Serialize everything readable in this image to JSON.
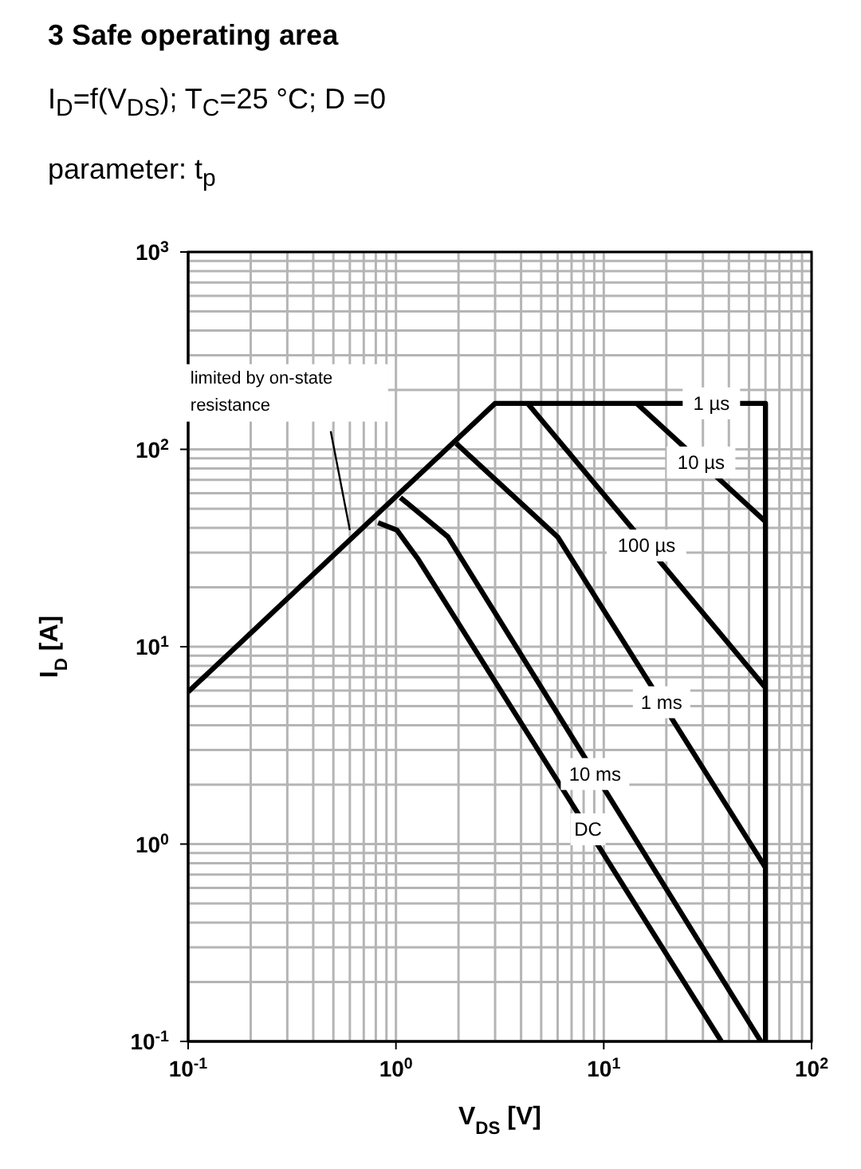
{
  "chart_data": {
    "type": "line",
    "title": "3 Safe operating area",
    "subtitle": "I$_{D}$=f(V$_{DS}$); T$_{C}$=25 °C; D =0",
    "annotations": [
      "parameter: t$_{p}$",
      {
        "text": "limited by on-state resistance",
        "x": 0.6,
        "y": 39
      }
    ],
    "xlabel": "V$_{DS}$ [V]",
    "ylabel": "I$_{D}$ [A]",
    "log": "xy",
    "grid": true,
    "marker": "none",
    "line_style": "solid",
    "xlim": [
      0.1,
      100
    ],
    "ylim": [
      0.1,
      1000
    ],
    "xticks": [
      {
        "value": 0.1,
        "label": "10$^{-1}$"
      },
      {
        "value": 0.2,
        "label": null
      },
      {
        "value": 0.3,
        "label": null
      },
      {
        "value": 0.4,
        "label": null
      },
      {
        "value": 0.5,
        "label": null
      },
      {
        "value": 0.6,
        "label": null
      },
      {
        "value": 0.7,
        "label": null
      },
      {
        "value": 0.8,
        "label": null
      },
      {
        "value": 0.9,
        "label": null
      },
      {
        "value": 1,
        "label": "10$^{0}$"
      },
      {
        "value": 2,
        "label": null
      },
      {
        "value": 3,
        "label": null
      },
      {
        "value": 4,
        "label": null
      },
      {
        "value": 5,
        "label": null
      },
      {
        "value": 6,
        "label": null
      },
      {
        "value": 7,
        "label": null
      },
      {
        "value": 8,
        "label": null
      },
      {
        "value": 9,
        "label": null
      },
      {
        "value": 10,
        "label": "10$^{1}$"
      },
      {
        "value": 20,
        "label": null
      },
      {
        "value": 30,
        "label": null
      },
      {
        "value": 40,
        "label": null
      },
      {
        "value": 50,
        "label": null
      },
      {
        "value": 60,
        "label": null
      },
      {
        "value": 70,
        "label": null
      },
      {
        "value": 80,
        "label": null
      },
      {
        "value": 90,
        "label": null
      },
      {
        "value": 100,
        "label": "10$^{2}$"
      }
    ],
    "yticks": [
      {
        "value": 0.1,
        "label": "10$^{-1}$"
      },
      {
        "value": 0.2,
        "label": null
      },
      {
        "value": 0.3,
        "label": null
      },
      {
        "value": 0.4,
        "label": null
      },
      {
        "value": 0.5,
        "label": null
      },
      {
        "value": 0.6,
        "label": null
      },
      {
        "value": 0.7,
        "label": null
      },
      {
        "value": 0.8,
        "label": null
      },
      {
        "value": 0.9,
        "label": null
      },
      {
        "value": 1,
        "label": "10$^{0}$"
      },
      {
        "value": 2,
        "label": null
      },
      {
        "value": 3,
        "label": null
      },
      {
        "value": 4,
        "label": null
      },
      {
        "value": 5,
        "label": null
      },
      {
        "value": 6,
        "label": null
      },
      {
        "value": 7,
        "label": null
      },
      {
        "value": 8,
        "label": null
      },
      {
        "value": 9,
        "label": null
      },
      {
        "value": 10,
        "label": "10$^{1}$"
      },
      {
        "value": 20,
        "label": null
      },
      {
        "value": 30,
        "label": null
      },
      {
        "value": 40,
        "label": null
      },
      {
        "value": 50,
        "label": null
      },
      {
        "value": 60,
        "label": null
      },
      {
        "value": 70,
        "label": null
      },
      {
        "value": 80,
        "label": null
      },
      {
        "value": 90,
        "label": null
      },
      {
        "value": 100,
        "label": "10$^{2}$"
      },
      {
        "value": 200,
        "label": null
      },
      {
        "value": 300,
        "label": null
      },
      {
        "value": 400,
        "label": null
      },
      {
        "value": 500,
        "label": null
      },
      {
        "value": 600,
        "label": null
      },
      {
        "value": 700,
        "label": null
      },
      {
        "value": 800,
        "label": null
      },
      {
        "value": 900,
        "label": null
      },
      {
        "value": 1000,
        "label": "10$^{3}$"
      }
    ],
    "series": [
      {
        "name": "1 µs",
        "color": "#000000",
        "x": [
          0.1,
          3,
          60,
          60
        ],
        "values": [
          5.9,
          171,
          171,
          0.1
        ]
      },
      {
        "name": "10 µs",
        "color": "#000000",
        "x": [
          14.4,
          60
        ],
        "values": [
          171,
          43
        ]
      },
      {
        "name": "100 µs",
        "color": "#000000",
        "x": [
          4.3,
          60
        ],
        "values": [
          171,
          6.2
        ]
      },
      {
        "name": "1 ms",
        "color": "#000000",
        "x": [
          1.95,
          6,
          60
        ],
        "values": [
          107,
          36,
          0.76
        ]
      },
      {
        "name": "10 ms",
        "color": "#000000",
        "x": [
          1.05,
          1.78,
          57
        ],
        "values": [
          57,
          36,
          0.1
        ]
      },
      {
        "name": "DC",
        "color": "#000000",
        "x": [
          0.82,
          1.01,
          1.28,
          36.8
        ],
        "values": [
          42.5,
          39,
          27.7,
          0.1
        ]
      }
    ]
  }
}
